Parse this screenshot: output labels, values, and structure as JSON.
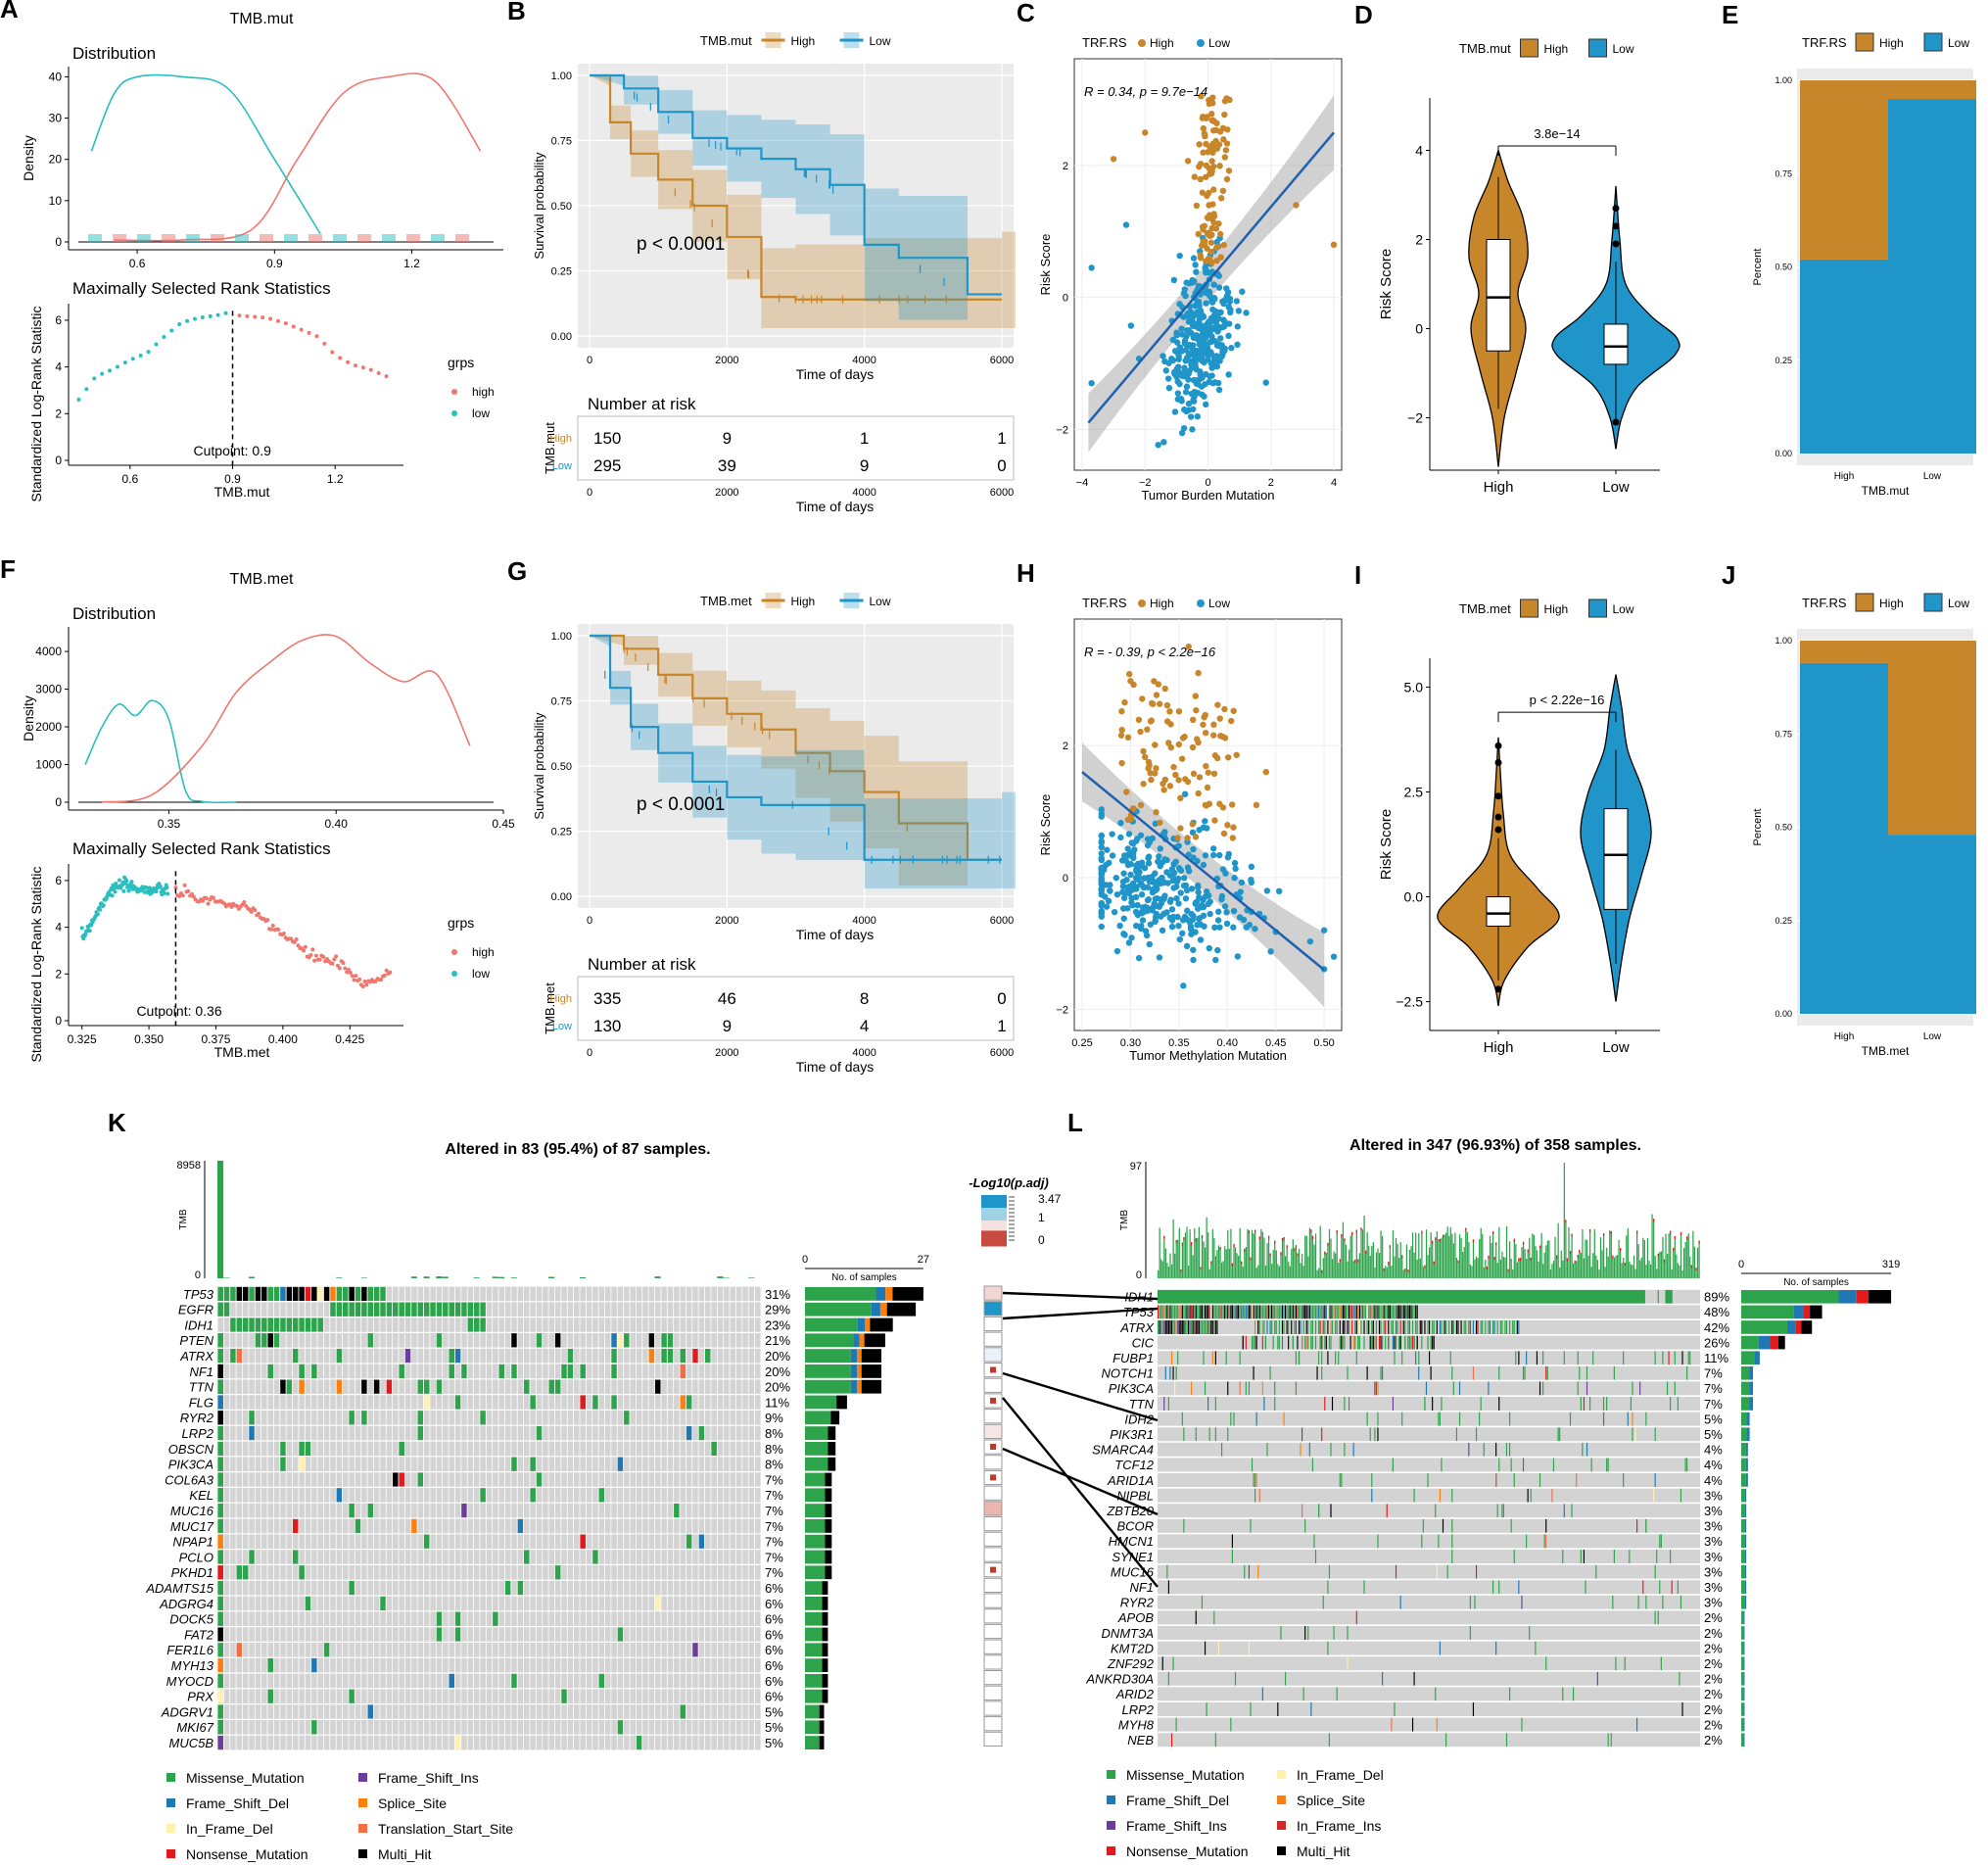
{
  "colors": {
    "gold": "#C8862A",
    "blue": "#1F95C9",
    "red": "#F0776F",
    "teal": "#2ABFBF",
    "panel_bg": "#EBEBEB",
    "grid": "#FFFFFF",
    "onco_bg": "#D3D3D3",
    "missense": "#2DA44B",
    "fsdel": "#1F77B4",
    "fsins": "#6A3D9A",
    "inframe_del": "#FFF2AE",
    "inframe_ins": "#D62728",
    "nonsense": "#E31A1C",
    "splice": "#FF7F0E",
    "tss": "#F46D43",
    "multi": "#000000"
  },
  "panels": {
    "A": {
      "label": "A",
      "title": "TMB.mut",
      "sub1": "Distribution",
      "sub2": "Maximally Selected Rank Statistics",
      "ylab1": "Density",
      "ylab2": "Standardized Log-Rank Statistic",
      "xlab": "TMB.mut",
      "cutpoint": "Cutpoint: 0.9",
      "legend_title": "grps",
      "legend": [
        "high",
        "low"
      ],
      "dens_yticks": [
        "0",
        "10",
        "20",
        "30",
        "40"
      ],
      "dens_xticks": [
        "0.6",
        "0.9",
        "1.2"
      ],
      "rank_yticks": [
        "0",
        "2",
        "4",
        "6"
      ],
      "rank_xticks": [
        "0.6",
        "0.9",
        "1.2"
      ]
    },
    "B": {
      "label": "B",
      "legend_title": "TMB.mut",
      "legend": [
        "High",
        "Low"
      ],
      "ylab": "Survival probability",
      "xlab": "Time of days",
      "pvalue": "p < 0.0001",
      "yticks": [
        "0.00",
        "0.25",
        "0.50",
        "0.75",
        "1.00"
      ],
      "xticks": [
        "0",
        "2000",
        "4000",
        "6000"
      ],
      "risk_title": "Number at risk",
      "risk_ylab": "TMB.mut",
      "risk_rows": [
        {
          "group": "High",
          "values": [
            "150",
            "9",
            "1",
            "1"
          ]
        },
        {
          "group": "Low",
          "values": [
            "295",
            "39",
            "9",
            "0"
          ]
        }
      ]
    },
    "C": {
      "label": "C",
      "legend_title": "TRF.RS",
      "legend": [
        "High",
        "Low"
      ],
      "annot": "R = 0.34, p = 9.7e−14",
      "ylab": "Risk Score",
      "xlab": "Tumor Burden Mutation",
      "yticks": [
        "−2",
        "0",
        "2"
      ],
      "xticks": [
        "−4",
        "−2",
        "0",
        "2",
        "4"
      ]
    },
    "D": {
      "label": "D",
      "legend_title": "TMB.mut",
      "legend": [
        "High",
        "Low"
      ],
      "pvalue": "3.8e−14",
      "ylab": "Risk Score",
      "yticks": [
        "−2",
        "0",
        "2",
        "4"
      ],
      "xticks": [
        "High",
        "Low"
      ]
    },
    "E": {
      "label": "E",
      "legend_title": "TRF.RS",
      "legend": [
        "High",
        "Low"
      ],
      "ylab": "Percent",
      "xlab": "TMB.mut",
      "yticks": [
        "0.00",
        "0.25",
        "0.50",
        "0.75",
        "1.00"
      ],
      "xticks": [
        "High",
        "Low"
      ]
    },
    "F": {
      "label": "F",
      "title": "TMB.met",
      "sub1": "Distribution",
      "sub2": "Maximally Selected Rank Statistics",
      "ylab1": "Density",
      "ylab2": "Standardized Log-Rank Statistic",
      "xlab": "TMB.met",
      "cutpoint": "Cutpoint: 0.36",
      "legend_title": "grps",
      "legend": [
        "high",
        "low"
      ],
      "dens_yticks": [
        "0",
        "1000",
        "2000",
        "3000",
        "4000"
      ],
      "dens_xticks": [
        "0.35",
        "0.40",
        "0.45"
      ],
      "rank_yticks": [
        "0",
        "2",
        "4",
        "6"
      ],
      "rank_xticks": [
        "0.325",
        "0.350",
        "0.375",
        "0.400",
        "0.425"
      ]
    },
    "G": {
      "label": "G",
      "legend_title": "TMB.met",
      "legend": [
        "High",
        "Low"
      ],
      "ylab": "Survival probability",
      "xlab": "Time of days",
      "pvalue": "p < 0.0001",
      "yticks": [
        "0.00",
        "0.25",
        "0.50",
        "0.75",
        "1.00"
      ],
      "xticks": [
        "0",
        "2000",
        "4000",
        "6000"
      ],
      "risk_title": "Number at risk",
      "risk_ylab": "TMB.met",
      "risk_rows": [
        {
          "group": "High",
          "values": [
            "335",
            "46",
            "8",
            "0"
          ]
        },
        {
          "group": "Low",
          "values": [
            "130",
            "9",
            "4",
            "1"
          ]
        }
      ]
    },
    "H": {
      "label": "H",
      "legend_title": "TRF.RS",
      "legend": [
        "High",
        "Low"
      ],
      "annot": "R = - 0.39, p < 2.2e−16",
      "ylab": "Risk Score",
      "xlab": "Tumor Methylation Mutation",
      "yticks": [
        "−2",
        "0",
        "2"
      ],
      "xticks": [
        "0.25",
        "0.30",
        "0.35",
        "0.40",
        "0.45",
        "0.50"
      ]
    },
    "I": {
      "label": "I",
      "legend_title": "TMB.met",
      "legend": [
        "High",
        "Low"
      ],
      "pvalue": "p < 2.22e−16",
      "ylab": "Risk Score",
      "yticks": [
        "−2.5",
        "0.0",
        "2.5",
        "5.0"
      ],
      "xticks": [
        "High",
        "Low"
      ]
    },
    "J": {
      "label": "J",
      "legend_title": "TRF.RS",
      "legend": [
        "High",
        "Low"
      ],
      "ylab": "Percent",
      "xlab": "TMB.met",
      "yticks": [
        "0.00",
        "0.25",
        "0.50",
        "0.75",
        "1.00"
      ],
      "xticks": [
        "High",
        "Low"
      ]
    },
    "K": {
      "label": "K",
      "title": "Altered in 83 (95.4%) of 87 samples.",
      "tmb_label": "TMB",
      "tmb_max": "8958",
      "tmb_min": "0",
      "samples_label": "No. of samples",
      "samples_min": "0",
      "samples_max": "27"
    },
    "L": {
      "label": "L",
      "title": "Altered in 347 (96.93%) of 358 samples.",
      "tmb_label": "TMB",
      "tmb_max": "97",
      "tmb_min": "0",
      "samples_label": "No. of samples",
      "samples_min": "0",
      "samples_max": "319"
    },
    "scale": {
      "title": "-Log10(p.adj)",
      "ticks": [
        "3.47",
        "1",
        "0"
      ]
    }
  },
  "legend_K": [
    "Missense_Mutation",
    "Frame_Shift_Del",
    "In_Frame_Del",
    "Nonsense_Mutation",
    "Frame_Shift_Ins",
    "Splice_Site",
    "Translation_Start_Site",
    "Multi_Hit"
  ],
  "legend_L": [
    "Missense_Mutation",
    "Frame_Shift_Del",
    "Frame_Shift_Ins",
    "Nonsense_Mutation",
    "In_Frame_Del",
    "Splice_Site",
    "In_Frame_Ins",
    "Multi_Hit"
  ],
  "chart_data": [
    {
      "id": "A_density",
      "type": "line",
      "x_label": "TMB.mut",
      "series": [
        {
          "name": "high",
          "x": [
            0.55,
            0.7,
            0.85,
            0.95,
            1.05,
            1.15,
            1.25,
            1.35
          ],
          "values": [
            0.5,
            0.5,
            3,
            20,
            36,
            40,
            39,
            22
          ]
        },
        {
          "name": "low",
          "x": [
            0.5,
            0.55,
            0.6,
            0.7,
            0.8,
            0.9,
            1.0
          ],
          "values": [
            22,
            36,
            40,
            40,
            37,
            20,
            2
          ]
        }
      ],
      "xlim": [
        0.45,
        1.4
      ],
      "ylim": [
        0,
        42
      ]
    },
    {
      "id": "A_rank",
      "type": "scatter",
      "x_label": "TMB.mut",
      "cutpoint": 0.9,
      "series": [
        {
          "name": "low",
          "x": [
            0.45,
            0.5,
            0.55,
            0.6,
            0.65,
            0.7,
            0.75,
            0.8,
            0.85,
            0.88
          ],
          "values": [
            2.6,
            3.6,
            3.9,
            4.3,
            4.6,
            5.3,
            5.9,
            6.1,
            6.2,
            6.3
          ]
        },
        {
          "name": "high",
          "x": [
            0.92,
            1.0,
            1.05,
            1.1,
            1.15,
            1.2,
            1.25,
            1.3,
            1.35
          ],
          "values": [
            6.2,
            6.1,
            5.9,
            5.6,
            5.3,
            4.5,
            4.1,
            3.9,
            3.6
          ]
        }
      ],
      "xlim": [
        0.42,
        1.4
      ],
      "ylim": [
        0,
        6.5
      ]
    },
    {
      "id": "B_km",
      "type": "line",
      "x_label": "Time of days",
      "series": [
        {
          "name": "High",
          "x": [
            0,
            300,
            600,
            1000,
            1500,
            2000,
            2500,
            3000,
            4000,
            6000
          ],
          "values": [
            1.0,
            0.82,
            0.7,
            0.6,
            0.5,
            0.38,
            0.15,
            0.14,
            0.14,
            0.14
          ]
        },
        {
          "name": "Low",
          "x": [
            0,
            500,
            1000,
            1500,
            2000,
            2500,
            3000,
            3500,
            4000,
            4500,
            5500
          ],
          "values": [
            1.0,
            0.95,
            0.86,
            0.76,
            0.72,
            0.68,
            0.64,
            0.58,
            0.35,
            0.3,
            0.16
          ]
        }
      ],
      "xlim": [
        0,
        6000
      ],
      "ylim": [
        0,
        1
      ]
    },
    {
      "id": "C_scatter",
      "type": "scatter",
      "x_label": "Tumor Burden Mutation",
      "y_label": "Risk Score",
      "R": 0.34,
      "p": "9.7e-14",
      "fit": {
        "x": [
          -3.8,
          4.0
        ],
        "y": [
          -1.9,
          2.5
        ]
      },
      "xlim": [
        -4,
        4
      ],
      "ylim": [
        -2.5,
        3.5
      ]
    },
    {
      "id": "D_violin",
      "type": "violin",
      "categories": [
        "High",
        "Low"
      ],
      "medians": [
        0.7,
        -0.4
      ],
      "q1": [
        -0.5,
        -0.8
      ],
      "q3": [
        2.0,
        0.1
      ],
      "ylim": [
        -3,
        5
      ]
    },
    {
      "id": "E_bar",
      "type": "bar",
      "categories": [
        "High",
        "Low"
      ],
      "series": [
        {
          "name": "Low",
          "values": [
            0.52,
            0.95
          ]
        },
        {
          "name": "High",
          "values": [
            0.48,
            0.05
          ]
        }
      ],
      "ylim": [
        0,
        1
      ]
    },
    {
      "id": "F_density",
      "type": "line",
      "x_label": "TMB.met",
      "series": [
        {
          "name": "low",
          "x": [
            0.325,
            0.33,
            0.335,
            0.34,
            0.345,
            0.35,
            0.355,
            0.36,
            0.37
          ],
          "values": [
            1000,
            2000,
            2600,
            2300,
            2700,
            2200,
            300,
            20,
            0
          ]
        },
        {
          "name": "high",
          "x": [
            0.33,
            0.345,
            0.36,
            0.37,
            0.38,
            0.39,
            0.4,
            0.41,
            0.42,
            0.43,
            0.44
          ],
          "values": [
            0,
            200,
            1500,
            2900,
            3700,
            4300,
            4400,
            3700,
            3200,
            3400,
            1500
          ]
        }
      ],
      "xlim": [
        0.32,
        0.45
      ],
      "ylim": [
        0,
        4600
      ]
    },
    {
      "id": "F_rank",
      "type": "scatter",
      "x_label": "TMB.met",
      "cutpoint": 0.36,
      "series": [
        {
          "name": "low",
          "x": [
            0.325,
            0.33,
            0.335,
            0.34,
            0.35,
            0.357
          ],
          "values": [
            3.5,
            4.5,
            5.5,
            5.8,
            5.6,
            5.6
          ]
        },
        {
          "name": "high",
          "x": [
            0.36,
            0.37,
            0.38,
            0.39,
            0.4,
            0.41,
            0.42,
            0.43,
            0.44
          ],
          "values": [
            5.5,
            5.2,
            5.0,
            4.6,
            3.7,
            2.8,
            2.5,
            1.5,
            2.0
          ]
        }
      ],
      "xlim": [
        0.32,
        0.445
      ],
      "ylim": [
        0,
        6.5
      ]
    },
    {
      "id": "G_km",
      "type": "line",
      "x_label": "Time of days",
      "series": [
        {
          "name": "High",
          "x": [
            0,
            500,
            1000,
            1500,
            2000,
            2500,
            3000,
            3500,
            4000,
            4500,
            5500
          ],
          "values": [
            1.0,
            0.95,
            0.85,
            0.76,
            0.7,
            0.64,
            0.55,
            0.48,
            0.4,
            0.28,
            0.14
          ]
        },
        {
          "name": "Low",
          "x": [
            0,
            300,
            600,
            1000,
            1500,
            2000,
            2500,
            3000,
            4000,
            6000
          ],
          "values": [
            1.0,
            0.8,
            0.65,
            0.55,
            0.44,
            0.38,
            0.35,
            0.35,
            0.14,
            0.14
          ]
        }
      ],
      "xlim": [
        0,
        6000
      ],
      "ylim": [
        0,
        1
      ]
    },
    {
      "id": "H_scatter",
      "type": "scatter",
      "x_label": "Tumor Methylation Mutation",
      "y_label": "Risk Score",
      "R": -0.39,
      "p": "< 2.2e-16",
      "fit": {
        "x": [
          0.25,
          0.5
        ],
        "y": [
          1.6,
          -1.4
        ]
      },
      "xlim": [
        0.25,
        0.51
      ],
      "ylim": [
        -2.2,
        3.8
      ]
    },
    {
      "id": "I_violin",
      "type": "violin",
      "categories": [
        "High",
        "Low"
      ],
      "medians": [
        -0.4,
        1.0
      ],
      "q1": [
        -0.7,
        -0.3
      ],
      "q3": [
        0.0,
        2.1
      ],
      "ylim": [
        -3,
        5.5
      ]
    },
    {
      "id": "J_bar",
      "type": "bar",
      "categories": [
        "High",
        "Low"
      ],
      "series": [
        {
          "name": "Low",
          "values": [
            0.94,
            0.48
          ]
        },
        {
          "name": "High",
          "values": [
            0.06,
            0.52
          ]
        }
      ],
      "ylim": [
        0,
        1
      ]
    },
    {
      "id": "K_oncoplot",
      "type": "heatmap",
      "genes": [
        "TP53",
        "EGFR",
        "IDH1",
        "PTEN",
        "ATRX",
        "NF1",
        "TTN",
        "FLG",
        "RYR2",
        "LRP2",
        "OBSCN",
        "PIK3CA",
        "COL6A3",
        "KEL",
        "MUC16",
        "MUC17",
        "NPAP1",
        "PCLO",
        "PKHD1",
        "ADAMTS15",
        "ADGRG4",
        "DOCK5",
        "FAT2",
        "FER1L6",
        "MYH13",
        "MYOCD",
        "PRX",
        "ADGRV1",
        "MKI67",
        "MUC5B"
      ],
      "percents": [
        "31%",
        "29%",
        "23%",
        "21%",
        "20%",
        "20%",
        "20%",
        "11%",
        "9%",
        "8%",
        "8%",
        "8%",
        "7%",
        "7%",
        "7%",
        "7%",
        "7%",
        "7%",
        "7%",
        "6%",
        "6%",
        "6%",
        "6%",
        "6%",
        "6%",
        "6%",
        "6%",
        "5%",
        "5%",
        "5%"
      ]
    },
    {
      "id": "L_oncoplot",
      "type": "heatmap",
      "genes": [
        "IDH1",
        "TP53",
        "ATRX",
        "CIC",
        "FUBP1",
        "NOTCH1",
        "PIK3CA",
        "TTN",
        "IDH2",
        "PIK3R1",
        "SMARCA4",
        "TCF12",
        "ARID1A",
        "NIPBL",
        "ZBTB20",
        "BCOR",
        "HMCN1",
        "SYNE1",
        "MUC16",
        "NF1",
        "RYR2",
        "APOB",
        "DNMT3A",
        "KMT2D",
        "ZNF292",
        "ANKRD30A",
        "ARID2",
        "LRP2",
        "MYH8",
        "NEB"
      ],
      "percents": [
        "89%",
        "48%",
        "42%",
        "26%",
        "11%",
        "7%",
        "7%",
        "7%",
        "5%",
        "5%",
        "4%",
        "4%",
        "4%",
        "3%",
        "3%",
        "3%",
        "3%",
        "3%",
        "3%",
        "3%",
        "3%",
        "2%",
        "2%",
        "2%",
        "2%",
        "2%",
        "2%",
        "2%",
        "2%",
        "2%"
      ]
    }
  ]
}
